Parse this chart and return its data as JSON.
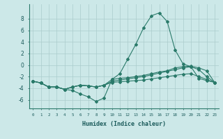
{
  "xlabel": "Humidex (Indice chaleur)",
  "x_ticks": [
    0,
    1,
    2,
    3,
    4,
    5,
    6,
    7,
    8,
    9,
    10,
    11,
    12,
    13,
    14,
    15,
    16,
    17,
    18,
    19,
    20,
    21,
    22,
    23
  ],
  "ylim": [
    -7.5,
    10.5
  ],
  "xlim": [
    -0.5,
    23.5
  ],
  "yticks": [
    -6,
    -4,
    -2,
    0,
    2,
    4,
    6,
    8
  ],
  "bg_color": "#cce8e8",
  "line_color": "#2a7a6a",
  "grid_color": "#aacccc",
  "curves": [
    [
      0,
      1,
      2,
      3,
      4,
      5,
      6,
      7,
      8,
      9,
      10,
      11,
      12,
      13,
      14,
      15,
      16,
      17,
      18,
      19,
      20,
      21,
      22,
      23
    ],
    [
      -2.8,
      -3.1,
      -3.8,
      -3.8,
      -4.2,
      -4.4,
      -5.0,
      -5.5,
      -6.3,
      -5.7,
      -2.5,
      -1.5,
      1.0,
      3.5,
      6.4,
      8.5,
      9.0,
      7.5,
      2.6,
      0.2,
      -0.3,
      -2.3,
      -2.7,
      -3.0
    ],
    [
      -2.8,
      -3.1,
      -3.8,
      -3.8,
      -4.2,
      -3.8,
      -3.5,
      -3.6,
      -3.8,
      -3.5,
      -2.5,
      -2.3,
      -2.2,
      -2.0,
      -1.8,
      -1.5,
      -1.2,
      -1.0,
      -0.5,
      -0.3,
      -0.2,
      -0.5,
      -1.0,
      -3.0
    ],
    [
      -2.8,
      -3.1,
      -3.8,
      -3.8,
      -4.2,
      -3.8,
      -3.5,
      -3.6,
      -3.8,
      -3.5,
      -2.8,
      -2.6,
      -2.4,
      -2.2,
      -2.0,
      -1.7,
      -1.4,
      -1.1,
      -0.8,
      -0.5,
      -0.3,
      -0.8,
      -2.0,
      -3.0
    ],
    [
      -2.8,
      -3.1,
      -3.8,
      -3.8,
      -4.2,
      -3.8,
      -3.5,
      -3.6,
      -3.8,
      -3.5,
      -3.0,
      -2.9,
      -2.8,
      -2.7,
      -2.6,
      -2.4,
      -2.2,
      -2.0,
      -1.8,
      -1.6,
      -1.5,
      -2.0,
      -2.5,
      -3.0
    ]
  ]
}
